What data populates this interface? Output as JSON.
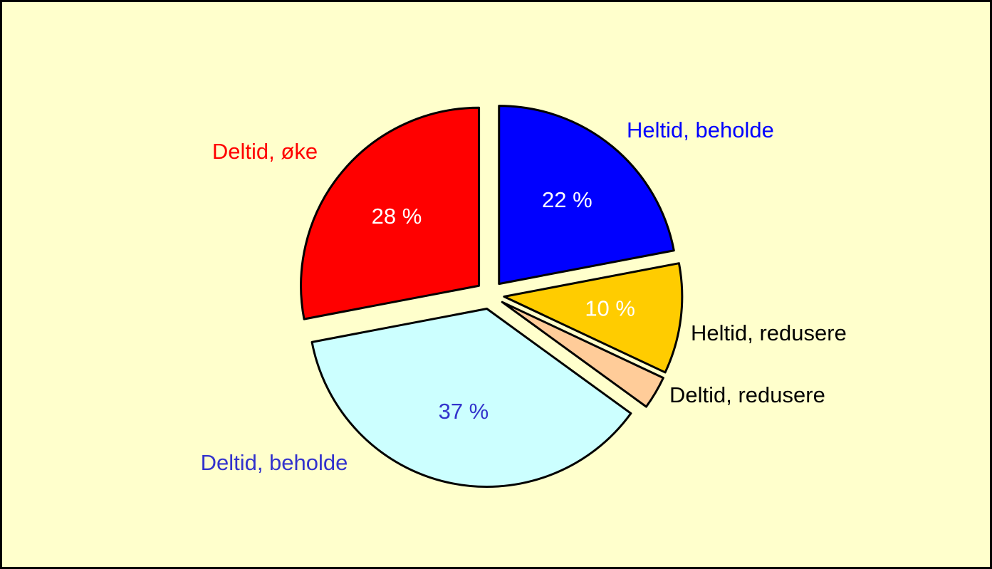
{
  "chart_data": {
    "type": "pie",
    "categories": [
      "Heltid, beholde",
      "Heltid, redusere",
      "Deltid, redusere",
      "Deltid, beholde",
      "Deltid, øke"
    ],
    "values": [
      22,
      10,
      3,
      37,
      28
    ],
    "value_labels": [
      "22 %",
      "10 %",
      null,
      "37 %",
      "28 %"
    ],
    "colors": [
      "#0000ff",
      "#ffcc00",
      "#ffcc99",
      "#ccffff",
      "#ff0000"
    ],
    "label_colors": [
      "#0000ff",
      "#000000",
      "#000000",
      "#3333cc",
      "#ff0000"
    ],
    "value_label_colors": [
      "#ffffff",
      "#ffffff",
      "#000000",
      "#3333cc",
      "#ffffff"
    ]
  }
}
